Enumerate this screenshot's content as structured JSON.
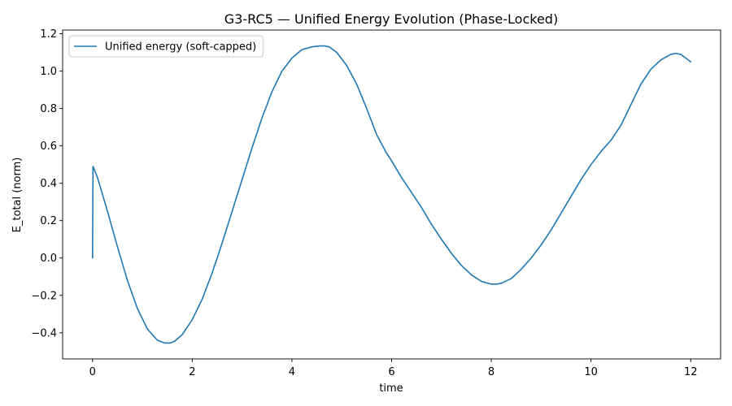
{
  "chart_data": {
    "type": "line",
    "title": "G3-RC5 — Unified Energy Evolution (Phase-Locked)",
    "xlabel": "time",
    "ylabel": "E_total (norm)",
    "xlim": [
      -0.6,
      12.6
    ],
    "ylim": [
      -0.54,
      1.22
    ],
    "xticks": [
      0,
      2,
      4,
      6,
      8,
      10,
      12
    ],
    "xtick_labels": [
      "0",
      "2",
      "4",
      "6",
      "8",
      "10",
      "12"
    ],
    "yticks": [
      -0.4,
      -0.2,
      0.0,
      0.2,
      0.4,
      0.6,
      0.8,
      1.0,
      1.2
    ],
    "ytick_labels": [
      "−0.4",
      "−0.2",
      "0.0",
      "0.2",
      "0.4",
      "0.6",
      "0.8",
      "1.0",
      "1.2"
    ],
    "grid": false,
    "legend_position": "top-left",
    "series": [
      {
        "name": "Unified energy (soft-capped)",
        "color": "#1f77b4",
        "x": [
          0.0,
          0.01,
          0.1,
          0.3,
          0.5,
          0.7,
          0.9,
          1.1,
          1.3,
          1.45,
          1.55,
          1.65,
          1.8,
          2.0,
          2.2,
          2.4,
          2.6,
          2.8,
          3.0,
          3.2,
          3.4,
          3.6,
          3.8,
          4.0,
          4.2,
          4.4,
          4.55,
          4.65,
          4.75,
          4.9,
          5.1,
          5.3,
          5.5,
          5.7,
          5.9,
          6.0,
          6.2,
          6.4,
          6.6,
          6.8,
          7.0,
          7.2,
          7.4,
          7.6,
          7.8,
          8.0,
          8.1,
          8.2,
          8.4,
          8.6,
          8.8,
          9.0,
          9.2,
          9.4,
          9.6,
          9.8,
          10.0,
          10.2,
          10.4,
          10.6,
          10.8,
          11.0,
          11.2,
          11.4,
          11.6,
          11.7,
          11.8,
          12.0
        ],
        "y": [
          0.0,
          0.49,
          0.43,
          0.25,
          0.06,
          -0.12,
          -0.27,
          -0.38,
          -0.44,
          -0.455,
          -0.455,
          -0.445,
          -0.41,
          -0.33,
          -0.22,
          -0.08,
          0.08,
          0.25,
          0.42,
          0.59,
          0.75,
          0.89,
          1.0,
          1.07,
          1.115,
          1.13,
          1.135,
          1.135,
          1.13,
          1.1,
          1.03,
          0.93,
          0.8,
          0.66,
          0.56,
          0.52,
          0.43,
          0.35,
          0.27,
          0.18,
          0.1,
          0.025,
          -0.04,
          -0.09,
          -0.125,
          -0.14,
          -0.14,
          -0.135,
          -0.11,
          -0.06,
          0.0,
          0.07,
          0.15,
          0.24,
          0.33,
          0.42,
          0.5,
          0.57,
          0.63,
          0.71,
          0.82,
          0.93,
          1.01,
          1.06,
          1.09,
          1.095,
          1.09,
          1.05
        ]
      }
    ]
  }
}
